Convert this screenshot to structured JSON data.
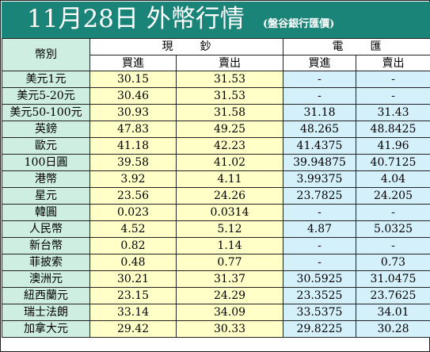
{
  "title": "11月28日 外幣行情",
  "source": "(盤谷銀行匯價)",
  "headers": {
    "currency": "幣別",
    "cash": "現鈔",
    "transfer": "電匯",
    "buy": "買進",
    "sell": "賣出"
  },
  "rows": [
    {
      "name": "美元1元",
      "cash_buy": "30.15",
      "cash_sell": "31.53",
      "tt_buy": "-",
      "tt_sell": "-"
    },
    {
      "name": "美元5-20元",
      "cash_buy": "30.46",
      "cash_sell": "31.53",
      "tt_buy": "-",
      "tt_sell": "-"
    },
    {
      "name": "美元50-100元",
      "cash_buy": "30.93",
      "cash_sell": "31.58",
      "tt_buy": "31.18",
      "tt_sell": "31.43"
    },
    {
      "name": "英鎊",
      "cash_buy": "47.83",
      "cash_sell": "49.25",
      "tt_buy": "48.265",
      "tt_sell": "48.8425"
    },
    {
      "name": "歐元",
      "cash_buy": "41.18",
      "cash_sell": "42.23",
      "tt_buy": "41.4375",
      "tt_sell": "41.96"
    },
    {
      "name": "100日圓",
      "cash_buy": "39.58",
      "cash_sell": "41.02",
      "tt_buy": "39.94875",
      "tt_sell": "40.7125"
    },
    {
      "name": "港幣",
      "cash_buy": "3.92",
      "cash_sell": "4.11",
      "tt_buy": "3.99375",
      "tt_sell": "4.04"
    },
    {
      "name": "星元",
      "cash_buy": "23.56",
      "cash_sell": "24.26",
      "tt_buy": "23.7825",
      "tt_sell": "24.205"
    },
    {
      "name": "韓圓",
      "cash_buy": "0.023",
      "cash_sell": "0.0314",
      "tt_buy": "-",
      "tt_sell": "-"
    },
    {
      "name": "人民幣",
      "cash_buy": "4.52",
      "cash_sell": "5.12",
      "tt_buy": "4.87",
      "tt_sell": "5.0325"
    },
    {
      "name": "新台幣",
      "cash_buy": "0.82",
      "cash_sell": "1.14",
      "tt_buy": "-",
      "tt_sell": "-"
    },
    {
      "name": "菲披索",
      "cash_buy": "0.48",
      "cash_sell": "0.77",
      "tt_buy": "-",
      "tt_sell": "0.73"
    },
    {
      "name": "澳洲元",
      "cash_buy": "30.21",
      "cash_sell": "31.37",
      "tt_buy": "30.5925",
      "tt_sell": "31.0475"
    },
    {
      "name": "紐西蘭元",
      "cash_buy": "23.15",
      "cash_sell": "24.29",
      "tt_buy": "23.3525",
      "tt_sell": "23.7625"
    },
    {
      "name": "瑞士法朗",
      "cash_buy": "33.14",
      "cash_sell": "34.09",
      "tt_buy": "33.5375",
      "tt_sell": "34.01"
    },
    {
      "name": "加拿大元",
      "cash_buy": "29.42",
      "cash_sell": "30.33",
      "tt_buy": "29.8225",
      "tt_sell": "30.28"
    }
  ],
  "colors": {
    "header_bg": "#1a8478",
    "label_bg": "#cdeee0",
    "cash_bg": "#ffffc8",
    "transfer_bg": "#d4f0fb"
  }
}
